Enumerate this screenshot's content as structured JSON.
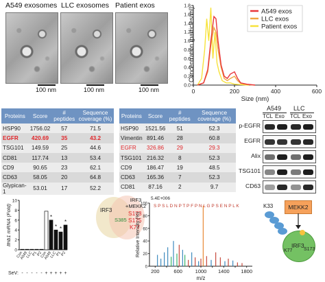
{
  "em_panels": {
    "titles": [
      "A549 exosomes",
      "LLC exosomes",
      "Patient exos"
    ],
    "scale_labels": [
      "100 nm",
      "100 nm",
      "100 nm"
    ]
  },
  "nta_chart": {
    "ylabel": "Concentration (particles/ml)",
    "xlabel": "Size (nm)",
    "legend": [
      "A549 exos",
      "LLC exos",
      "Patient exos"
    ]
  },
  "chart_data": [
    {
      "type": "line",
      "xlabel": "Size (nm)",
      "ylabel": "Concentration (particles/ml)",
      "xlim": [
        0,
        600
      ],
      "ylim": [
        0,
        1.8
      ],
      "xticks": [
        "0",
        "200",
        "400",
        "600"
      ],
      "yticks": [
        "0.0",
        "0.2",
        "0.4",
        "0.6",
        "0.8",
        "1.0",
        "1.2",
        "1.4",
        "1.6",
        "1.8"
      ],
      "legend_position": "top-right",
      "series": [
        {
          "name": "A549 exos",
          "color": "#e8353a",
          "x": [
            20,
            50,
            70,
            85,
            100,
            110,
            120,
            135,
            150,
            165,
            180,
            200,
            215,
            230,
            260,
            300
          ],
          "y": [
            0,
            0.05,
            0.35,
            1.0,
            1.55,
            1.5,
            1.0,
            0.45,
            0.2,
            0.15,
            0.25,
            0.3,
            0.15,
            0.05,
            0.02,
            0
          ]
        },
        {
          "name": "LLC exos",
          "color": "#f0a640",
          "x": [
            20,
            50,
            70,
            85,
            100,
            110,
            120,
            135,
            150,
            165,
            180,
            200,
            215,
            230,
            260,
            300
          ],
          "y": [
            0,
            0.05,
            0.3,
            0.9,
            1.3,
            1.2,
            0.8,
            0.4,
            0.15,
            0.1,
            0.15,
            0.2,
            0.1,
            0.04,
            0.01,
            0
          ]
        },
        {
          "name": "Patient exos",
          "color": "#f7e23a",
          "x": [
            20,
            40,
            55,
            65,
            75,
            85,
            95,
            105,
            115,
            125,
            140,
            160,
            180,
            200,
            230,
            270
          ],
          "y": [
            0,
            0.15,
            0.8,
            1.5,
            1.0,
            1.75,
            0.6,
            1.2,
            0.5,
            0.3,
            0.1,
            0.05,
            0.05,
            0.02,
            0.01,
            0
          ]
        }
      ]
    },
    {
      "type": "bar",
      "ylabel": "Ifnb1 mRNA (Fold)",
      "ylim": [
        0,
        10
      ],
      "yticks": [
        "0",
        "2",
        "4",
        "6",
        "8",
        "10"
      ],
      "categories": [
        "Con",
        "A549",
        "LLC",
        "P1",
        "P2",
        "Con",
        "A549",
        "LLC",
        "P1",
        "P2"
      ],
      "values": [
        0.1,
        0.1,
        0.1,
        0.1,
        0.1,
        7.8,
        6.0,
        4.0,
        3.6,
        5.0
      ],
      "sev_row_label": "SeV:",
      "sev": [
        "-",
        "-",
        "-",
        "-",
        "-",
        "+",
        "+",
        "+",
        "+",
        "+"
      ],
      "significant": [
        false,
        false,
        false,
        false,
        false,
        false,
        true,
        true,
        true,
        true
      ]
    },
    {
      "type": "bar",
      "xlabel": "m/z",
      "ylabel": "Relative Intensity (%)",
      "scale_label": "5.4E+006",
      "xlim": [
        100,
        1900
      ],
      "ylim": [
        0,
        100
      ],
      "xticks": [
        "200",
        "400",
        "600",
        "800",
        "1000",
        "1200",
        "1400",
        "1600",
        "1800"
      ],
      "yticks": [
        "0",
        "20",
        "40",
        "60",
        "80",
        "100"
      ],
      "sequence": "S P S L D N P T P F P N L G P S E N P L K"
    }
  ],
  "table1": {
    "headers": [
      "Proteins",
      "Score",
      "# peptides",
      "Sequence coverage (%)"
    ],
    "rows": [
      [
        "HSP90",
        "1756.02",
        "57",
        "71.5"
      ],
      [
        "EGFR",
        "420.69",
        "35",
        "43.2"
      ],
      [
        "TSG101",
        "149.59",
        "25",
        "44.6"
      ],
      [
        "CD81",
        "117.74",
        "13",
        "53.4"
      ],
      [
        "CD9",
        "90.65",
        "23",
        "62.1"
      ],
      [
        "CD63",
        "58.05",
        "20",
        "64.8"
      ],
      [
        "Glypican-1",
        "53.01",
        "17",
        "52.2"
      ]
    ]
  },
  "table2": {
    "headers": [
      "Proteins",
      "Score",
      "# peptides",
      "Sequence coverage (%)"
    ],
    "rows": [
      [
        "HSP90",
        "1521.56",
        "51",
        "52.3"
      ],
      [
        "Vimentin",
        "891.46",
        "28",
        "60.8"
      ],
      [
        "EGFR",
        "326.86",
        "29",
        "29.3"
      ],
      [
        "TSG101",
        "216.32",
        "8",
        "52.3"
      ],
      [
        "CD9",
        "186.47",
        "19",
        "48.5"
      ],
      [
        "CD63",
        "165.36",
        "7",
        "52.3"
      ],
      [
        "CD81",
        "87.16",
        "2",
        "9.7"
      ]
    ]
  },
  "western_blot": {
    "groups": [
      "A549",
      "LLC"
    ],
    "lanes": [
      "TCL",
      "Exo",
      "TCL",
      "Exo"
    ],
    "rows": [
      "p-EGFR",
      "EGFR",
      "Alix",
      "TSG101",
      "CD63"
    ]
  },
  "venn": {
    "left": "IRF3",
    "right_title": "IRF3 +MEKK2",
    "overlap": "S385",
    "sites": [
      "S173",
      "S175",
      "K77"
    ]
  },
  "mechanism": {
    "kinase": "MEKK2",
    "protein": "IRF3",
    "residue_top": "K33",
    "ub_label": "Ub",
    "k77": "K77",
    "s173": "S173"
  }
}
